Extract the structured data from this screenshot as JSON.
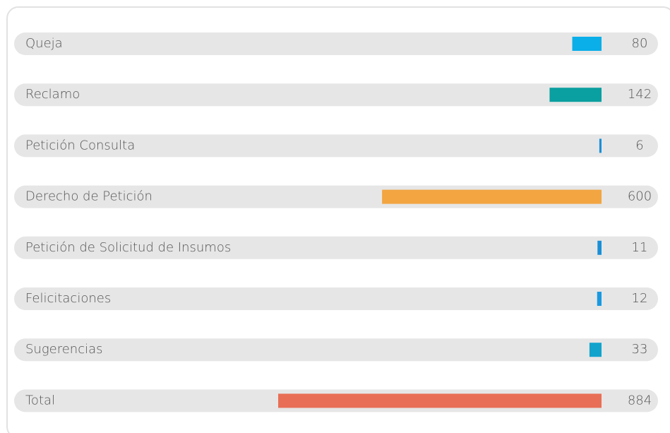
{
  "chart_data": {
    "type": "bar",
    "categories": [
      "Queja",
      "Reclamo",
      "Petición Consulta",
      "Derecho de Petición",
      "Petición de Solicitud de Insumos",
      "Felicitaciones",
      "Sugerencias",
      "Total"
    ],
    "values": [
      80,
      142,
      6,
      600,
      11,
      12,
      33,
      884
    ],
    "colors": [
      "#0aaee8",
      "#0a9fa0",
      "#1a8fd6",
      "#f2a541",
      "#1a8fd6",
      "#1a99e0",
      "#11a3cc",
      "#e86f55"
    ]
  }
}
